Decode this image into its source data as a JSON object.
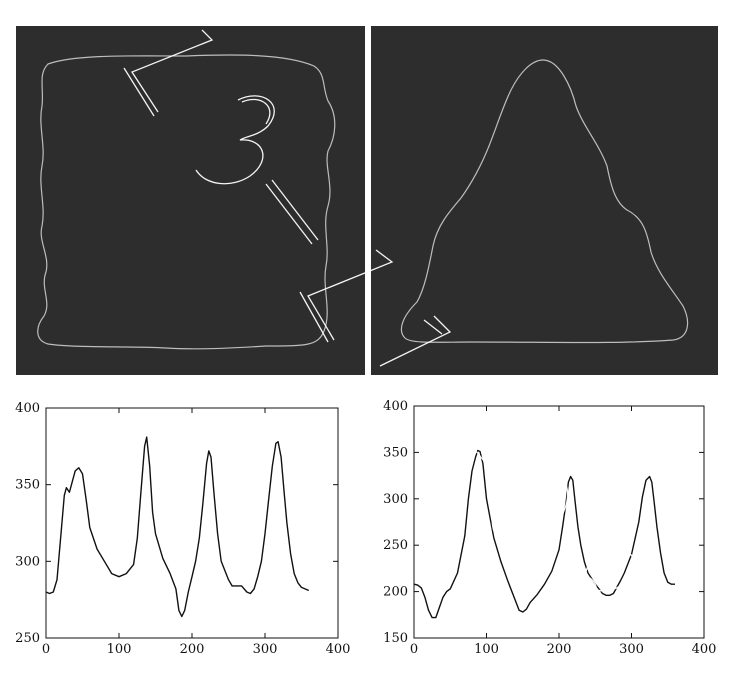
{
  "images": [
    {
      "shape": "rounded-square-contour",
      "background": "#2d2d2d",
      "stroke": "#bdbdbd"
    },
    {
      "shape": "triangle-contour",
      "background": "#2d2d2d",
      "stroke": "#bdbdbd"
    }
  ],
  "chart_data": [
    {
      "type": "line",
      "xlim": [
        0,
        400
      ],
      "ylim": [
        250,
        400
      ],
      "xticks": [
        "0",
        "100",
        "200",
        "300",
        "400"
      ],
      "yticks": [
        "250",
        "300",
        "350",
        "400"
      ],
      "grid": false,
      "series": [
        {
          "color": "#111111",
          "x": [
            0,
            5,
            10,
            15,
            20,
            25,
            28,
            32,
            36,
            40,
            45,
            50,
            55,
            60,
            70,
            80,
            90,
            100,
            110,
            120,
            125,
            130,
            135,
            138,
            142,
            146,
            150,
            160,
            170,
            178,
            182,
            186,
            190,
            195,
            200,
            205,
            210,
            215,
            220,
            223,
            226,
            230,
            235,
            240,
            250,
            255,
            262,
            268,
            275,
            280,
            285,
            290,
            295,
            300,
            305,
            310,
            315,
            318,
            322,
            326,
            330,
            335,
            340,
            345,
            350,
            355,
            360
          ],
          "y": [
            280,
            279,
            280,
            288,
            315,
            343,
            348,
            345,
            352,
            359,
            361,
            357,
            340,
            322,
            308,
            300,
            292,
            290,
            292,
            298,
            315,
            345,
            375,
            381,
            362,
            332,
            318,
            302,
            292,
            282,
            268,
            264,
            268,
            280,
            290,
            300,
            315,
            338,
            364,
            372,
            368,
            345,
            318,
            300,
            288,
            284,
            284,
            284,
            280,
            279,
            282,
            290,
            300,
            318,
            340,
            362,
            377,
            378,
            368,
            346,
            325,
            305,
            292,
            286,
            283,
            282,
            281
          ]
        }
      ]
    },
    {
      "type": "line",
      "xlim": [
        0,
        400
      ],
      "ylim": [
        150,
        400
      ],
      "xticks": [
        "0",
        "100",
        "200",
        "300",
        "400"
      ],
      "yticks": [
        "150",
        "200",
        "250",
        "300",
        "350",
        "400"
      ],
      "grid": false,
      "series": [
        {
          "color": "#111111",
          "x": [
            0,
            5,
            10,
            15,
            20,
            25,
            30,
            35,
            40,
            45,
            50,
            60,
            70,
            75,
            80,
            85,
            88,
            91,
            95,
            100,
            110,
            120,
            130,
            140,
            145,
            150,
            155,
            160,
            170,
            180,
            190,
            200,
            205,
            210,
            213,
            216,
            219,
            222,
            226,
            230,
            235,
            240,
            250,
            260,
            265,
            270,
            275,
            280,
            285,
            290,
            300,
            310,
            315,
            320,
            325,
            328,
            331,
            335,
            340,
            345,
            350,
            355,
            360
          ],
          "y": [
            208,
            207,
            204,
            194,
            180,
            172,
            172,
            183,
            194,
            200,
            203,
            220,
            260,
            300,
            330,
            345,
            352,
            351,
            338,
            300,
            258,
            232,
            210,
            190,
            180,
            178,
            181,
            188,
            197,
            208,
            222,
            245,
            270,
            298,
            318,
            324,
            320,
            298,
            270,
            250,
            232,
            220,
            208,
            198,
            196,
            196,
            198,
            205,
            212,
            220,
            240,
            275,
            302,
            320,
            324,
            318,
            298,
            270,
            242,
            220,
            210,
            208,
            208
          ]
        }
      ]
    }
  ]
}
